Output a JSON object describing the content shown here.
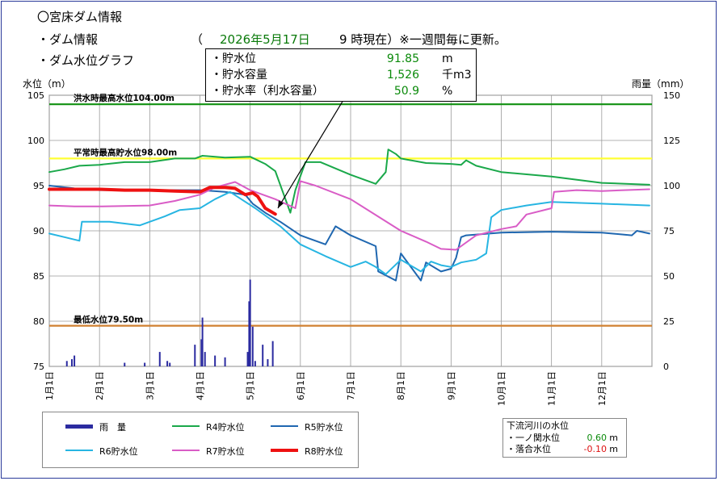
{
  "header": {
    "title": "〇宮床ダム情報",
    "line1_label": "・ダム情報",
    "line1_paren": "（",
    "line1_date": "2026年5月17日",
    "line1_time": "9 時現在）※一週間毎に更新。",
    "line2_label": "・ダム水位グラフ"
  },
  "callout": {
    "rows": [
      {
        "label": "・貯水位",
        "value": "91.85",
        "unit": "m"
      },
      {
        "label": "・貯水容量",
        "value": "1,526",
        "unit": "千m3"
      },
      {
        "label": "・貯水率（利水容量）",
        "value": "50.9",
        "unit": "%"
      }
    ]
  },
  "legend": {
    "rain": "雨　量",
    "r4": "R4貯水位",
    "r5": "R5貯水位",
    "r6": "R6貯水位",
    "r7": "R7貯水位",
    "r8": "R8貯水位"
  },
  "river": {
    "title": "下流河川の水位",
    "rows": [
      {
        "label": "・一ノ関水位",
        "value": "0.60",
        "unit": "m"
      },
      {
        "label": "・落合水位",
        "value": "-0.10",
        "unit": "m"
      }
    ]
  },
  "chart_data": {
    "type": "line",
    "ylabel": "水位（m）",
    "y2label": "雨量（mm）",
    "ylim": [
      75,
      105
    ],
    "y2lim": [
      0,
      150
    ],
    "yticks": [
      "105",
      "100",
      "95",
      "90",
      "85",
      "80",
      "75"
    ],
    "y2ticks": [
      "150",
      "125",
      "100",
      "75",
      "50",
      "25",
      "0"
    ],
    "xlim": [
      1,
      13
    ],
    "xticks": [
      "1月1日",
      "2月1日",
      "3月1日",
      "4月1日",
      "5月1日",
      "6月1日",
      "7月1日",
      "8月1日",
      "9月1日",
      "10月1日",
      "11月1日",
      "12月1日"
    ],
    "reference_lines": [
      {
        "label": "洪水時最高水位104.00m",
        "value": 104.0,
        "color": "#109010"
      },
      {
        "label": "平常時最高貯水位98.00m",
        "value": 98.0,
        "color": "#ffff33"
      },
      {
        "label": "最低水位79.50m",
        "value": 79.5,
        "color": "#d08030"
      }
    ],
    "series": [
      {
        "name": "R4貯水位",
        "color": "#1aa84a",
        "width": 2,
        "x": [
          1,
          1.3,
          1.6,
          2,
          2.5,
          3,
          3.5,
          3.9,
          4.05,
          4.5,
          5,
          5.3,
          5.5,
          5.8,
          5.9,
          6.1,
          6.4,
          7,
          7.5,
          7.7,
          7.75,
          7.9,
          8,
          8.5,
          9,
          9.2,
          9.3,
          9.5,
          10,
          11,
          12,
          12.95
        ],
        "y": [
          96.5,
          96.8,
          97.2,
          97.3,
          97.6,
          97.6,
          98.0,
          98.0,
          98.3,
          98.1,
          98.2,
          97.4,
          96.6,
          92.0,
          94.5,
          97.6,
          97.6,
          96.2,
          95.2,
          96.5,
          99.0,
          98.5,
          98.0,
          97.5,
          97.4,
          97.3,
          97.8,
          97.2,
          96.5,
          96.0,
          95.3,
          95.1
        ]
      },
      {
        "name": "R5貯水位",
        "color": "#1f67b0",
        "width": 2,
        "x": [
          1,
          1.5,
          2,
          3,
          3.5,
          4,
          4.5,
          4.9,
          5.05,
          5.3,
          5.6,
          6,
          6.5,
          6.7,
          7,
          7.5,
          7.55,
          7.9,
          8,
          8.4,
          8.5,
          8.8,
          9,
          9.1,
          9.2,
          9.3,
          10,
          11,
          12,
          12.6,
          12.7,
          12.95
        ],
        "y": [
          95.0,
          94.7,
          94.5,
          94.5,
          94.5,
          94.5,
          94.3,
          94.0,
          93.0,
          92.0,
          91.0,
          89.5,
          88.5,
          90.5,
          89.5,
          88.3,
          85.5,
          84.5,
          87.5,
          84.5,
          86.5,
          85.5,
          85.8,
          87.0,
          89.3,
          89.5,
          89.8,
          89.9,
          89.8,
          89.5,
          90.0,
          89.7
        ]
      },
      {
        "name": "R6貯水位",
        "color": "#27b5e2",
        "width": 2,
        "x": [
          1,
          1.3,
          1.6,
          1.65,
          2.2,
          2.8,
          3.3,
          3.6,
          4,
          4.3,
          4.6,
          5.1,
          5.6,
          6,
          6.5,
          7,
          7.3,
          7.5,
          7.7,
          8,
          8.4,
          8.6,
          8.8,
          9,
          9.2,
          9.5,
          9.7,
          9.8,
          10,
          10.5,
          11,
          12,
          12.95
        ],
        "y": [
          89.7,
          89.3,
          88.9,
          91.0,
          91.0,
          90.6,
          91.6,
          92.3,
          92.5,
          93.5,
          94.3,
          92.5,
          90.5,
          88.5,
          87.2,
          86.0,
          86.6,
          86.0,
          85.2,
          86.8,
          85.5,
          86.6,
          86.2,
          86.0,
          86.5,
          86.8,
          87.5,
          91.5,
          92.3,
          92.8,
          93.2,
          93.0,
          92.8
        ]
      },
      {
        "name": "R7貯水位",
        "color": "#d95cc6",
        "width": 2,
        "x": [
          1,
          1.5,
          2,
          3,
          3.5,
          4,
          4.3,
          4.7,
          5,
          5.5,
          5.9,
          6,
          6.3,
          7,
          8,
          8.5,
          8.8,
          9.1,
          9.5,
          10,
          10.3,
          10.5,
          11,
          11.05,
          11.5,
          12,
          12.95
        ],
        "y": [
          92.8,
          92.7,
          92.7,
          92.8,
          93.3,
          94.0,
          94.8,
          95.4,
          94.5,
          93.5,
          92.5,
          95.5,
          95.0,
          93.5,
          90.0,
          88.8,
          88.0,
          87.9,
          89.5,
          90.2,
          90.5,
          91.8,
          92.5,
          94.3,
          94.5,
          94.4,
          94.6
        ]
      },
      {
        "name": "R8貯水位",
        "color": "#ee1111",
        "width": 4,
        "x": [
          1,
          1.5,
          2,
          2.5,
          3,
          3.5,
          4,
          4.2,
          4.5,
          4.7,
          4.9,
          5.05,
          5.15,
          5.3,
          5.5
        ],
        "y": [
          94.6,
          94.6,
          94.6,
          94.5,
          94.5,
          94.4,
          94.3,
          94.8,
          94.8,
          94.7,
          94.0,
          94.2,
          93.8,
          92.5,
          91.85
        ]
      }
    ],
    "rain": {
      "name": "雨　量",
      "color": "#2b2ba0",
      "x": [
        1.35,
        1.45,
        1.5,
        2.5,
        2.9,
        3.2,
        3.35,
        3.4,
        3.9,
        4.03,
        4.05,
        4.1,
        4.3,
        4.5,
        4.95,
        4.98,
        5.0,
        5.05,
        5.1,
        5.25,
        5.35,
        5.45
      ],
      "values": [
        3,
        4,
        6,
        2,
        2,
        8,
        3,
        2,
        12,
        15,
        27,
        8,
        6,
        5,
        8,
        36,
        48,
        22,
        3,
        12,
        4,
        14
      ]
    }
  }
}
